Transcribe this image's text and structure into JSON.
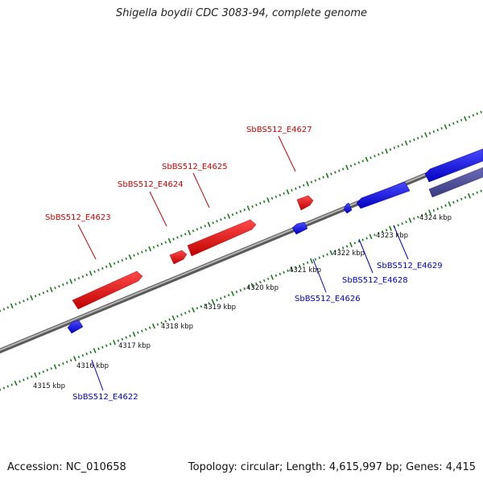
{
  "title": "Shigella boydii CDC 3083-94, complete genome",
  "footer": {
    "accession": "Accession: NC_010658",
    "stats": "Topology: circular; Length: 4,615,997 bp; Genes: 4,415"
  },
  "colors": {
    "forward_gene": "#ee0000",
    "reverse_gene": "#1a1aee",
    "reverse_gene_alt": "#4b4b99",
    "backbone": "#888888",
    "tick": "#1a7a1a"
  },
  "kbp_labels": [
    "4315 kbp",
    "4316 kbp",
    "4317 kbp",
    "4318 kbp",
    "4319 kbp",
    "4320 kbp",
    "4321 kbp",
    "4322 kbp",
    "4323 kbp",
    "4324 kbp"
  ],
  "genes_top": [
    "SbBS512_E4623",
    "SbBS512_E4624",
    "SbBS512_E4625",
    "SbBS512_E4627"
  ],
  "genes_bottom": [
    "SbBS512_E4622",
    "SbBS512_E4626",
    "SbBS512_E4628",
    "SbBS512_E4629"
  ]
}
